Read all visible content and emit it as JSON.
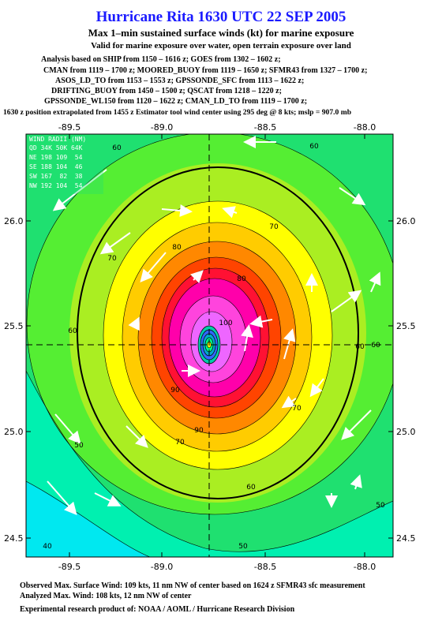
{
  "header": {
    "title": "Hurricane Rita 1630 UTC 22 SEP 2005",
    "subtitle": "Max 1–min sustained surface winds (kt) for marine exposure",
    "valid": "Valid for marine exposure over water, open terrain exposure over land",
    "analysis": [
      "Analysis based on  SHIP from 1150 – 1616 z;  GOES from 1302 – 1602 z;",
      "CMAN from 1119 – 1700 z;  MOORED_BUOY from 1119 – 1650 z;  SFMR43 from 1327 – 1700 z;",
      "ASOS_LD_TO from 1153 – 1553 z;  GPSSONDE_SFC from 1113 – 1622 z;",
      "DRIFTING_BUOY from 1450 – 1500 z;  QSCAT from 1218 – 1220 z;",
      "GPSSONDE_WL150 from 1120 – 1622 z;  CMAN_LD_TO from 1119 – 1700 z;"
    ],
    "position": "1630 z position extrapolated from 1455 z Estimator tool wind center using 295 deg @ 8 kts; mslp = 907.0 mb"
  },
  "map": {
    "lon_labels": [
      "-89.5",
      "-89.0",
      "-88.5",
      "-88.0"
    ],
    "lat_labels": [
      "26.0",
      "25.5",
      "25.0",
      "24.5"
    ],
    "wind_radii": {
      "title": "WIND RADII (NM)",
      "header": "QD 34K 50K 64K",
      "rows": [
        "NE 198 109  54",
        "SE 188 104  46",
        "SW 167  82  38",
        "NW 192 104  54"
      ]
    },
    "contour_labels": [
      "60",
      "60",
      "70",
      "70",
      "80",
      "80",
      "90",
      "90",
      "100",
      "60",
      "70",
      "60",
      "50",
      "50",
      "50",
      "40",
      "70",
      "60",
      "60"
    ]
  },
  "footer": {
    "observed": "Observed Max. Surface Wind: 109 kts, 11 nm NW of center based on 1624 z SFMR43 sfc measurement",
    "analyzed": "Analyzed Max. Wind: 108 kts, 12 nm NW of center",
    "credit": "Experimental research product of:  NOAA / AOML / Hurricane Research Division"
  }
}
